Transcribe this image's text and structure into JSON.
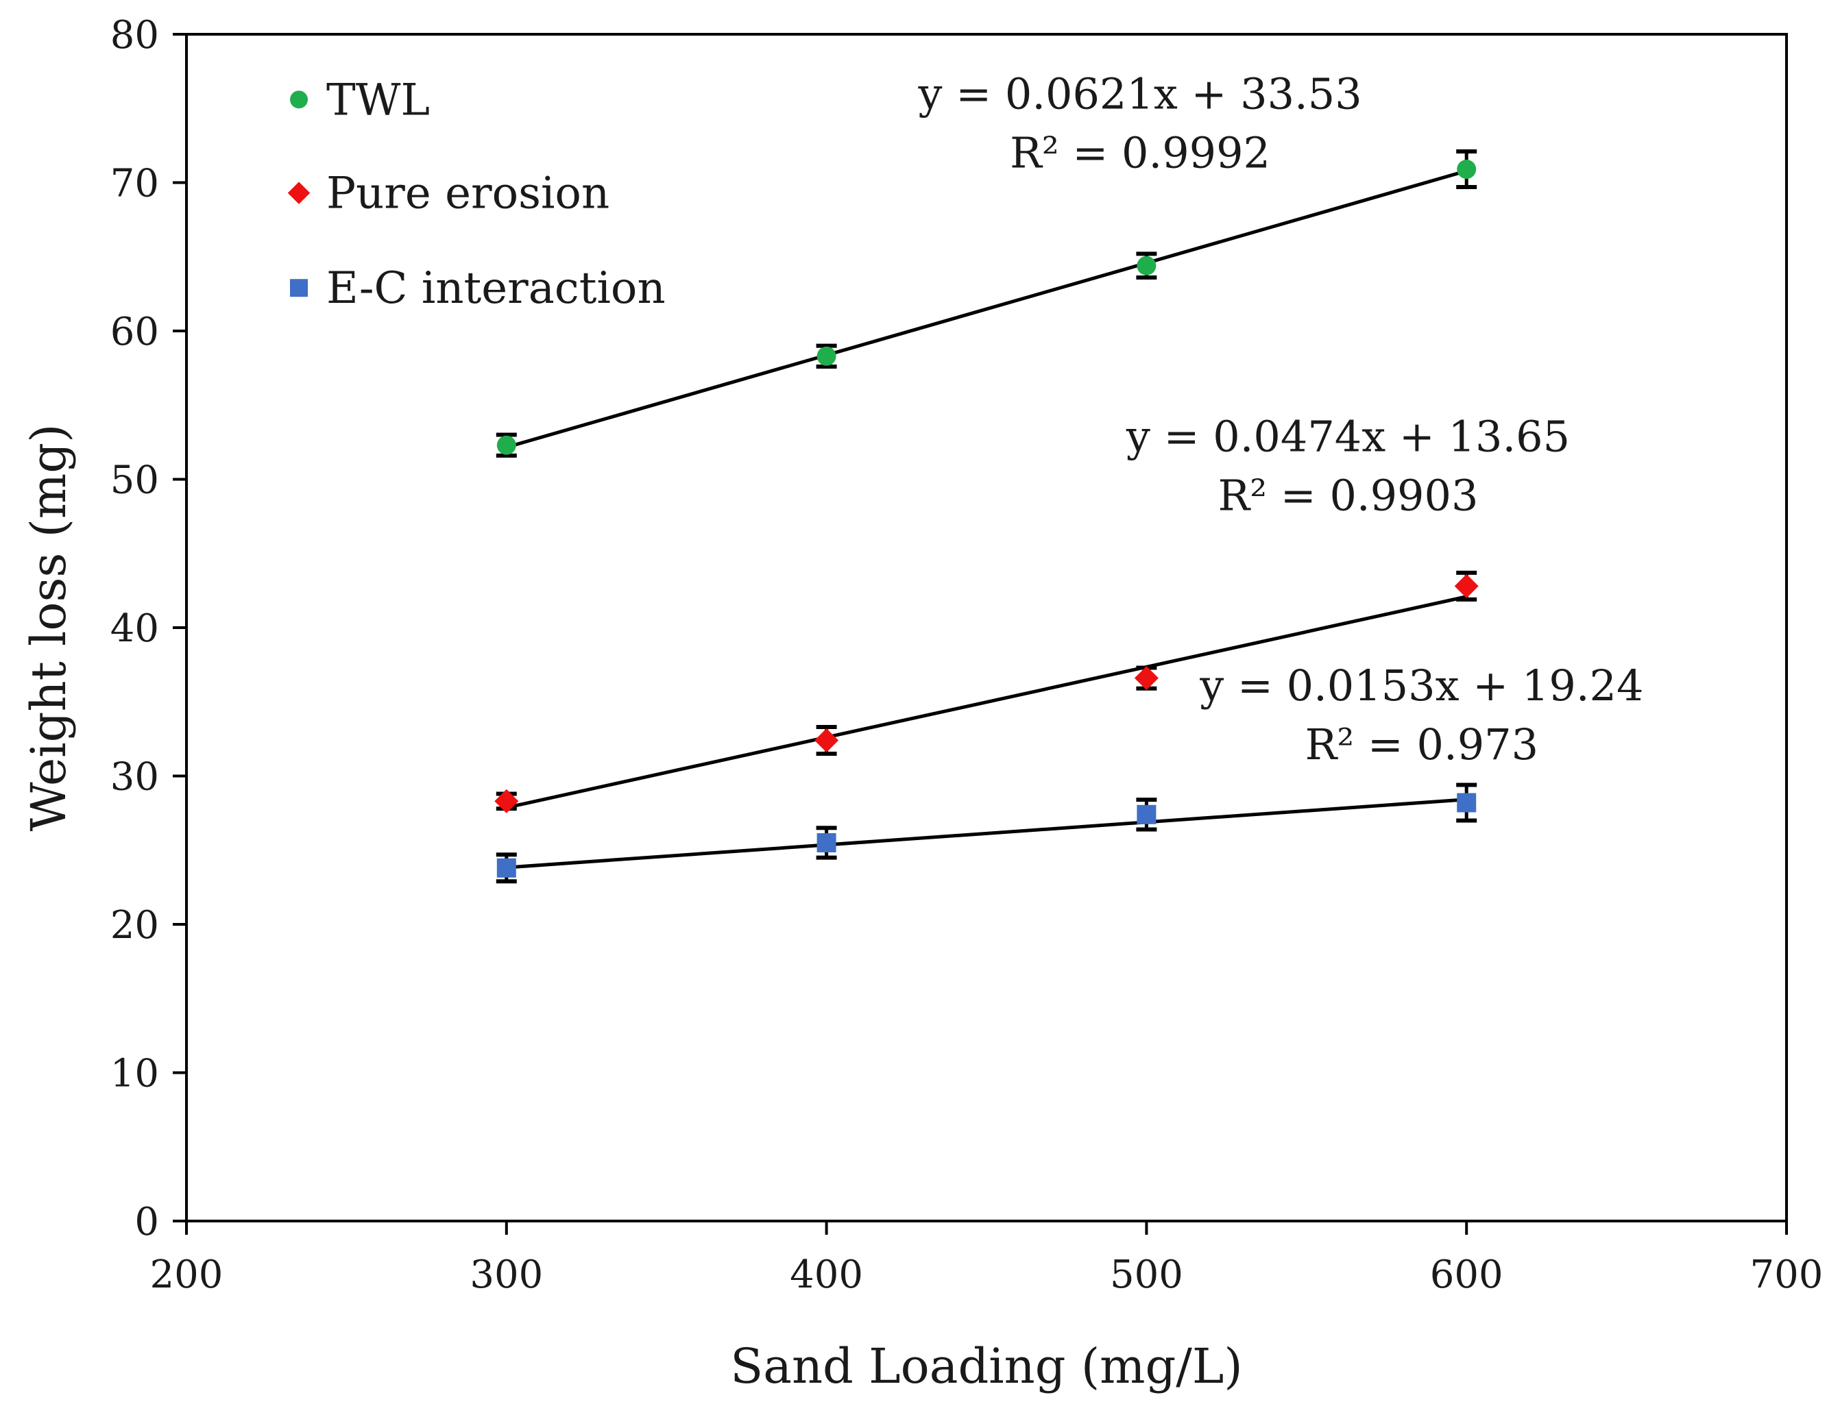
{
  "chart_data": {
    "type": "scatter",
    "title": "",
    "xlabel": "Sand Loading (mg/L)",
    "ylabel": "Weight loss (mg)",
    "xlim": [
      200,
      700
    ],
    "ylim": [
      0,
      80
    ],
    "xticks": [
      200,
      300,
      400,
      500,
      600,
      700
    ],
    "yticks": [
      0,
      10,
      20,
      30,
      40,
      50,
      60,
      70,
      80
    ],
    "grid": false,
    "legend_position": "top-left",
    "series": [
      {
        "name": "TWL",
        "marker": "circle",
        "color": "#1fae4b",
        "x": [
          300,
          400,
          500,
          600
        ],
        "y": [
          52.3,
          58.3,
          64.4,
          70.9
        ],
        "error": [
          0.7,
          0.7,
          0.8,
          1.2
        ],
        "trendline": {
          "slope": 0.0621,
          "intercept": 33.53,
          "equation": "y = 0.0621x + 33.53",
          "r2": "R² = 0.9992"
        }
      },
      {
        "name": "Pure erosion",
        "marker": "diamond",
        "color": "#ee1111",
        "x": [
          300,
          400,
          500,
          600
        ],
        "y": [
          28.3,
          32.4,
          36.6,
          42.8
        ],
        "error": [
          0.5,
          0.9,
          0.7,
          0.9
        ],
        "trendline": {
          "slope": 0.0474,
          "intercept": 13.65,
          "equation": "y = 0.0474x + 13.65",
          "r2": "R² = 0.9903"
        }
      },
      {
        "name": "E-C interaction",
        "marker": "square",
        "color": "#3f6fc6",
        "x": [
          300,
          400,
          500,
          600
        ],
        "y": [
          23.8,
          25.5,
          27.4,
          28.2
        ],
        "error": [
          0.9,
          1.0,
          1.0,
          1.2
        ],
        "trendline": {
          "slope": 0.0153,
          "intercept": 19.24,
          "equation": "y = 0.0153x + 19.24",
          "r2": "R² = 0.973"
        }
      }
    ]
  }
}
